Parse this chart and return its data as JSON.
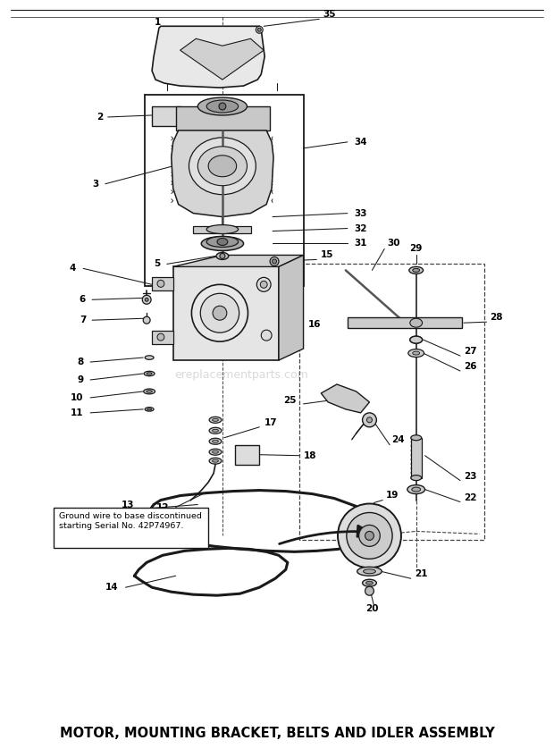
{
  "title": "MOTOR, MOUNTING BRACKET, BELTS AND IDLER ASSEMBLY",
  "title_fontsize": 10.5,
  "background_color": "#ffffff",
  "line_color": "#1a1a1a",
  "note_text": "Ground wire to base discontinued\nstarting Serial No. 42P74967.",
  "watermark": "ereplacementparts.com",
  "fig_width": 6.2,
  "fig_height": 8.38,
  "dpi": 100
}
